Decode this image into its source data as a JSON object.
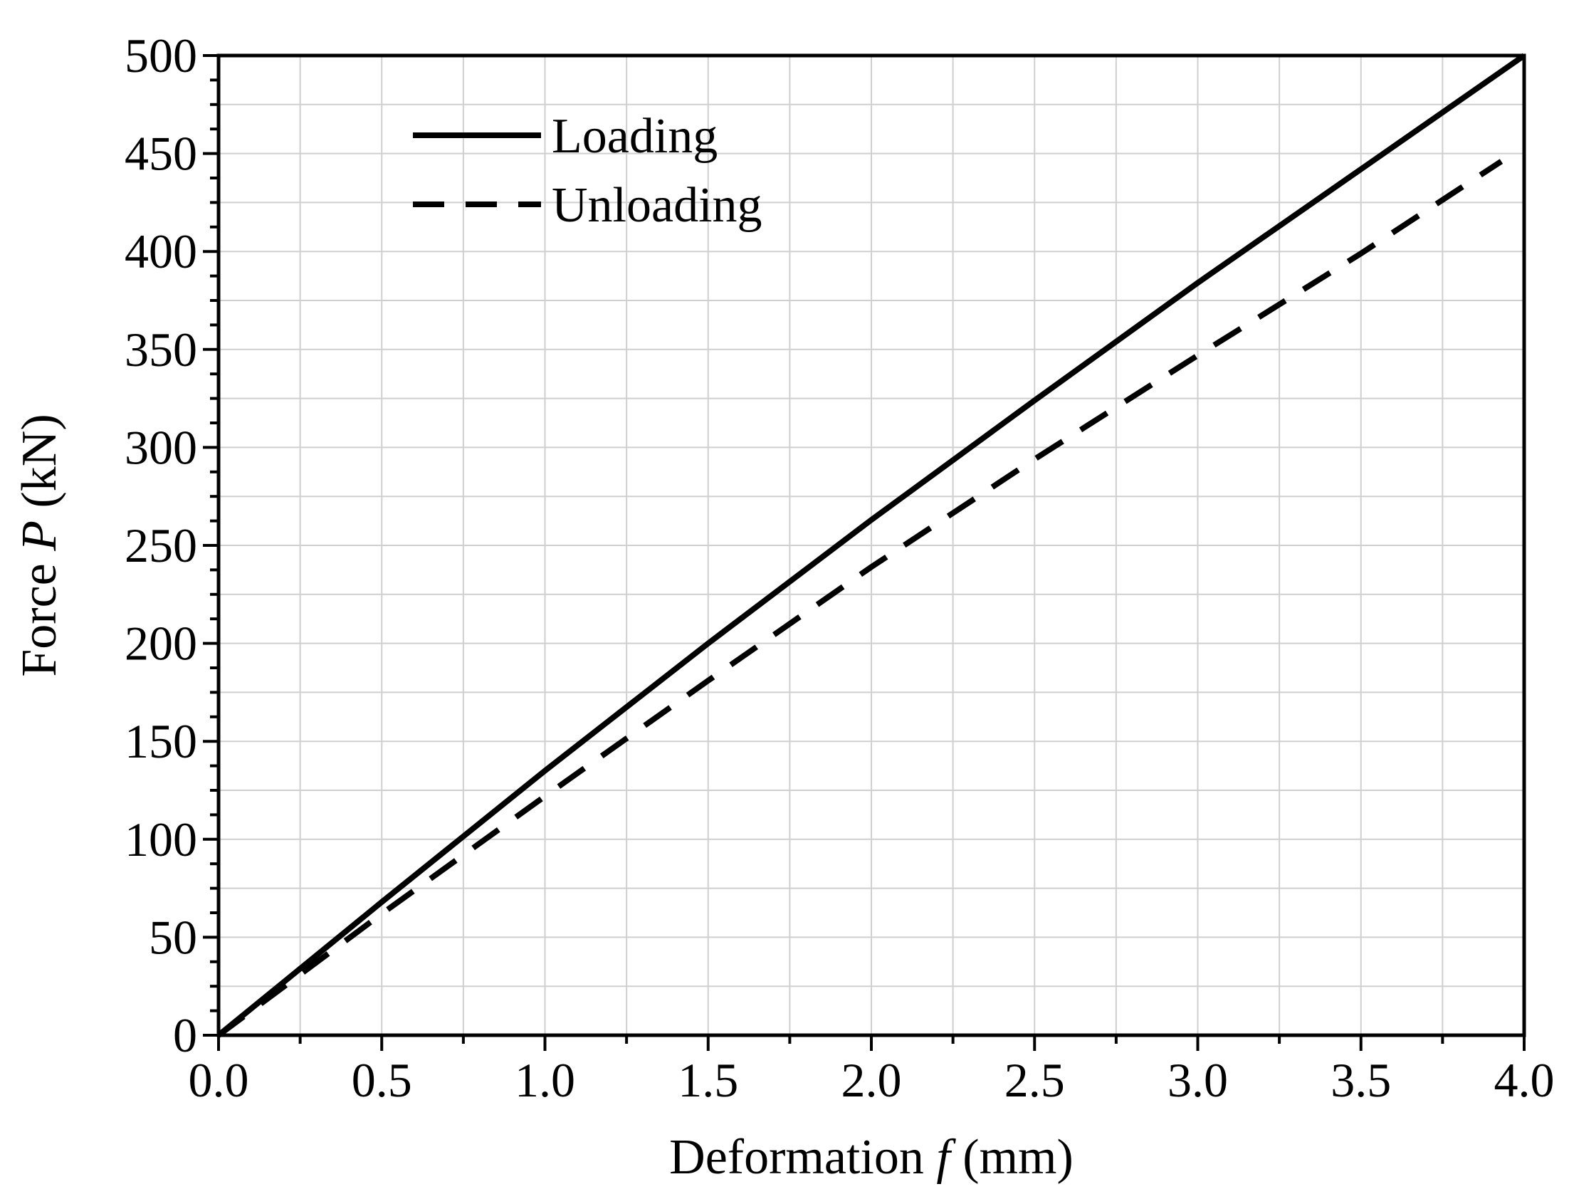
{
  "chart_data": {
    "type": "line",
    "xlabel": {
      "prefix": "Deformation ",
      "symbol": "f",
      "suffix": " (mm)"
    },
    "ylabel": {
      "prefix": "Force ",
      "symbol": "P",
      "suffix": " (kN)"
    },
    "xlim": [
      0,
      4
    ],
    "ylim": [
      0,
      500
    ],
    "x_ticks": [
      "0.0",
      "0.5",
      "1.0",
      "1.5",
      "2.0",
      "2.5",
      "3.0",
      "3.5",
      "4.0"
    ],
    "y_ticks": [
      "0",
      "50",
      "100",
      "150",
      "200",
      "250",
      "300",
      "350",
      "400",
      "450",
      "500"
    ],
    "x_tick_values": [
      0,
      0.5,
      1.0,
      1.5,
      2.0,
      2.5,
      3.0,
      3.5,
      4.0
    ],
    "y_tick_values": [
      0,
      50,
      100,
      150,
      200,
      250,
      300,
      350,
      400,
      450,
      500
    ],
    "grid": true,
    "legend_position": "top-left",
    "series": [
      {
        "name": "Loading",
        "style": "solid",
        "color": "#000000",
        "x": [
          0,
          0.5,
          1.0,
          1.5,
          2.0,
          2.5,
          3.0,
          3.5,
          4.0
        ],
        "y": [
          0,
          68,
          135,
          200,
          263,
          324,
          384,
          442,
          500
        ]
      },
      {
        "name": "Unloading",
        "style": "dashed",
        "color": "#000000",
        "x": [
          0,
          0.5,
          1.0,
          1.5,
          2.0,
          2.5,
          3.0,
          3.5,
          3.93
        ],
        "y": [
          0,
          62,
          122,
          181,
          239,
          294,
          347,
          399,
          446
        ]
      }
    ]
  }
}
